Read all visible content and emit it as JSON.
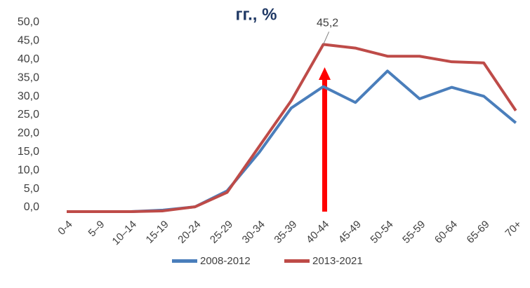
{
  "chart_data": {
    "type": "line",
    "title": "гг., %",
    "categories": [
      "0-4",
      "5–9",
      "10–14",
      "15-19",
      "20-24",
      "25-29",
      "30-34",
      "35-39",
      "40-44",
      "45-49",
      "50-54",
      "55-59",
      "60-64",
      "65-69",
      "70+"
    ],
    "series": [
      {
        "name": "2008-2012",
        "color": "#4a7ebb",
        "values": [
          0,
          0,
          0,
          0.4,
          1.3,
          5.6,
          16,
          28,
          33.8,
          29.5,
          38,
          30.5,
          33.6,
          31.2,
          24
        ]
      },
      {
        "name": "2013-2021",
        "color": "#be4b48",
        "values": [
          0,
          0,
          0,
          0.2,
          1.3,
          5.2,
          17.6,
          30,
          45.2,
          44.2,
          42,
          42,
          40.5,
          40.2,
          27.3
        ],
        "value_labels": [
          null,
          null,
          null,
          null,
          null,
          null,
          null,
          null,
          "45,2",
          null,
          null,
          null,
          null,
          null,
          null
        ]
      }
    ],
    "ylim": [
      0,
      50
    ],
    "yticks": [
      {
        "value": 0,
        "label": "0,0"
      },
      {
        "value": 5,
        "label": "5,0"
      },
      {
        "value": 10,
        "label": "10,0"
      },
      {
        "value": 15,
        "label": "15,0"
      },
      {
        "value": 20,
        "label": "20,0"
      },
      {
        "value": 25,
        "label": "25,0"
      },
      {
        "value": 30,
        "label": "30,0"
      },
      {
        "value": 35,
        "label": "35,0"
      },
      {
        "value": 40,
        "label": "40,0"
      },
      {
        "value": 45,
        "label": "45,0"
      },
      {
        "value": 50,
        "label": "50,0"
      }
    ],
    "legend": "bottom"
  }
}
